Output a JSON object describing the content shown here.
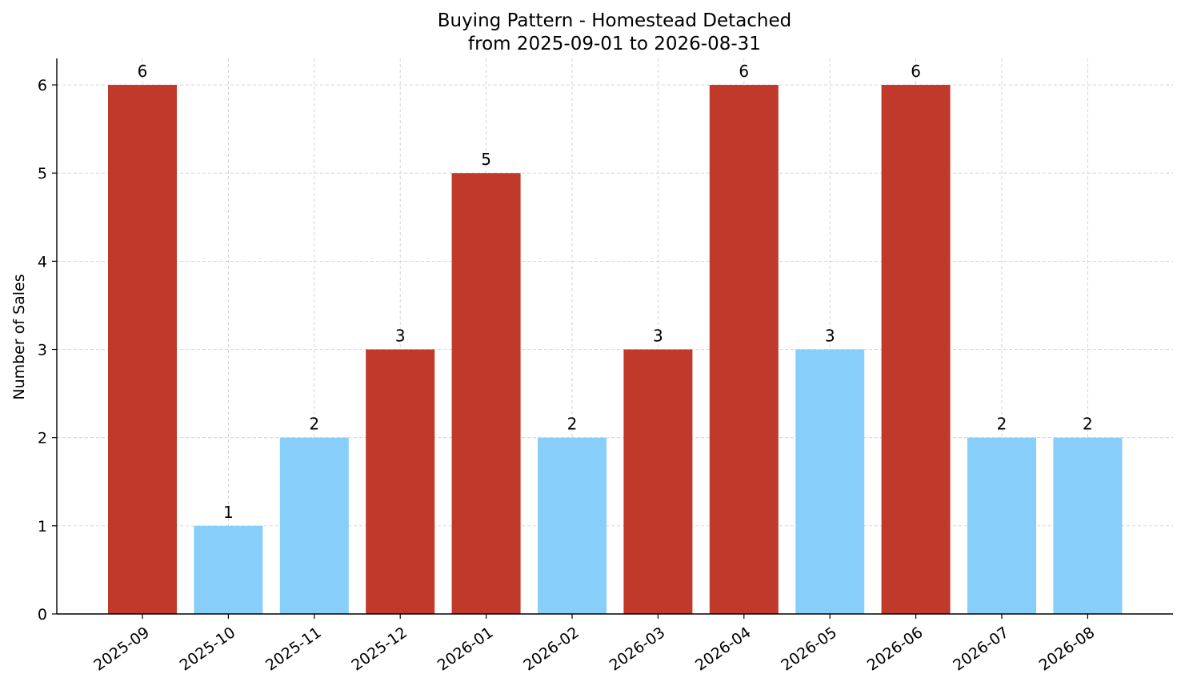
{
  "chart_data": {
    "type": "bar",
    "title": "Buying Pattern - Homestead Detached",
    "subtitle": "from 2025-09-01 to 2026-08-31",
    "xlabel": "",
    "ylabel": "Number of Sales",
    "categories": [
      "2025-09",
      "2025-10",
      "2025-11",
      "2025-12",
      "2026-01",
      "2026-02",
      "2026-03",
      "2026-04",
      "2026-05",
      "2026-06",
      "2026-07",
      "2026-08"
    ],
    "values": [
      6,
      1,
      2,
      3,
      5,
      2,
      3,
      6,
      3,
      6,
      2,
      2
    ],
    "value_labels": [
      "6",
      "1",
      "2",
      "3",
      "5",
      "2",
      "3",
      "6",
      "3",
      "6",
      "2",
      "2"
    ],
    "bar_colors": [
      "#c0392b",
      "#87cefa",
      "#87cefa",
      "#c0392b",
      "#c0392b",
      "#87cefa",
      "#c0392b",
      "#c0392b",
      "#87cefa",
      "#c0392b",
      "#87cefa",
      "#87cefa"
    ],
    "y_ticks": [
      0,
      1,
      2,
      3,
      4,
      5,
      6
    ],
    "y_tick_labels": [
      "0",
      "1",
      "2",
      "3",
      "4",
      "5",
      "6"
    ],
    "ylim": [
      0,
      6.3
    ],
    "grid": true,
    "legend": "none",
    "colors": {
      "high": "#c0392b",
      "low": "#87cefa",
      "axis": "#000000",
      "grid": "#cccccc"
    }
  }
}
